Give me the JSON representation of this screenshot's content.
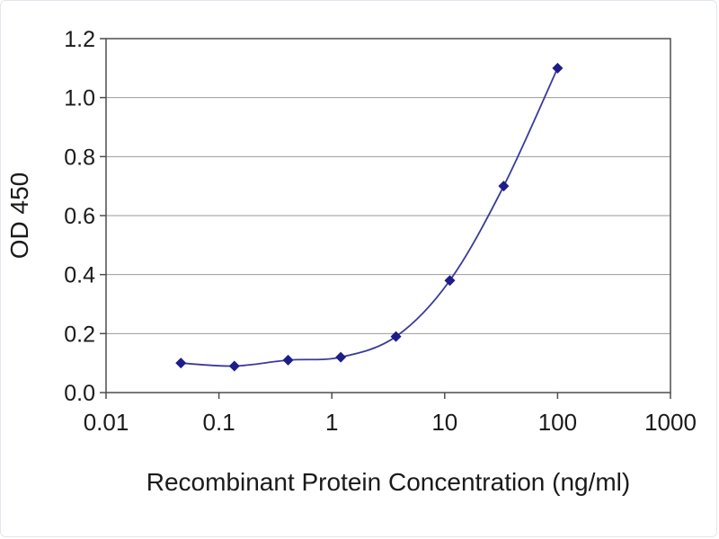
{
  "page": {
    "background": "#ffffff",
    "frame_border": "#e3e7ee"
  },
  "chart_data": {
    "type": "line",
    "title": "",
    "xlabel": "Recombinant Protein Concentration (ng/ml)",
    "ylabel": "OD 450",
    "x_scale": "log",
    "xlim": [
      0.01,
      1000
    ],
    "ylim": [
      0,
      1.2
    ],
    "x_ticks": [
      0.01,
      0.1,
      1,
      10,
      100,
      1000
    ],
    "x_tick_labels": [
      "0.01",
      "0.1",
      "1",
      "10",
      "100",
      "1000"
    ],
    "y_ticks": [
      0,
      0.2,
      0.4,
      0.6,
      0.8,
      1,
      1.2
    ],
    "y_tick_labels": [
      "0.0",
      "0.2",
      "0.4",
      "0.6",
      "0.8",
      "1.0",
      "1.2"
    ],
    "grid": "horizontal",
    "legend": "none",
    "marker": "diamond",
    "series": [
      {
        "name": "OD 450",
        "x": [
          0.046,
          0.137,
          0.41,
          1.2,
          3.7,
          11.1,
          33.3,
          100
        ],
        "values": [
          0.1,
          0.09,
          0.11,
          0.12,
          0.19,
          0.38,
          0.7,
          1.1
        ]
      }
    ],
    "colors": {
      "line": "#3a3a9c",
      "marker": "#1c1c8a",
      "grid": "#999999",
      "axis": "#4d4d4d",
      "text": "#1a1a1a"
    }
  }
}
